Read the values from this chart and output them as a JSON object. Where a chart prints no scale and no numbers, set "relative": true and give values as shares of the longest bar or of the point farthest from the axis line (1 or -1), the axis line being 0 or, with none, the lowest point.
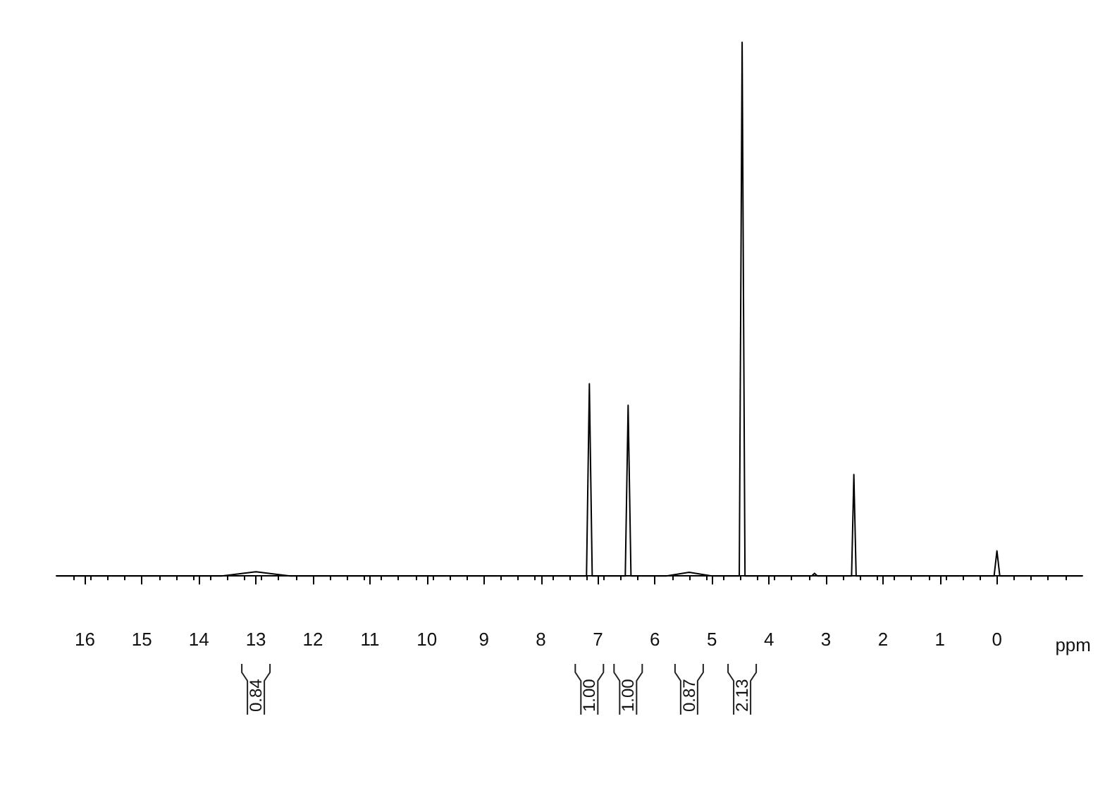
{
  "chart_data": {
    "type": "line",
    "relative": true,
    "xlabel": "ppm",
    "x": [
      16.5,
      13.6,
      13.0,
      12.4,
      7.2,
      7.15,
      7.1,
      6.52,
      6.47,
      6.42,
      5.8,
      5.4,
      5.0,
      4.52,
      4.47,
      4.42,
      3.25,
      3.2,
      3.15,
      2.55,
      2.51,
      2.47,
      0.05,
      0,
      -0.05,
      -1.5
    ],
    "series": [
      {
        "color": "#000000",
        "values": [
          0,
          0,
          0.008,
          0,
          0,
          0.36,
          0,
          0,
          0.32,
          0,
          0,
          0.007,
          0,
          0,
          1,
          0,
          0,
          0.005,
          0,
          0,
          0.19,
          0,
          0,
          0.047,
          0,
          0
        ]
      }
    ],
    "xlim": [
      16.5,
      -1.5
    ],
    "xticks": [
      16,
      15,
      14,
      13,
      12,
      11,
      10,
      9,
      8,
      7,
      6,
      5,
      4,
      3,
      2,
      1,
      0
    ],
    "marker": "none",
    "line_style": "solid",
    "grid": false,
    "annotations": [
      "0.84",
      "1.00",
      "1.00",
      "0.87",
      "2.13"
    ]
  }
}
